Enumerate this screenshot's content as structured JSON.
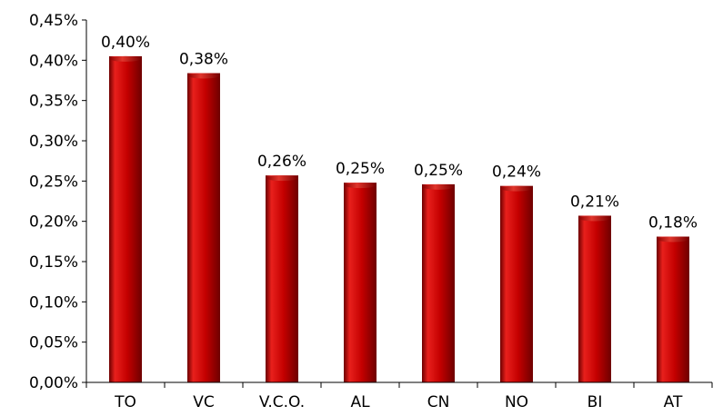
{
  "chart_data": {
    "type": "bar",
    "title": "",
    "xlabel": "",
    "ylabel": "",
    "categories": [
      "TO",
      "VC",
      "V.C.O.",
      "AL",
      "CN",
      "NO",
      "BI",
      "AT"
    ],
    "values": [
      0.405,
      0.384,
      0.257,
      0.248,
      0.246,
      0.244,
      0.207,
      0.181
    ],
    "data_labels": [
      "0,40%",
      "0,38%",
      "0,26%",
      "0,25%",
      "0,25%",
      "0,24%",
      "0,21%",
      "0,18%"
    ],
    "ylim": [
      0,
      0.45
    ],
    "y_ticks": [
      0,
      0.05,
      0.1,
      0.15,
      0.2,
      0.25,
      0.3,
      0.35,
      0.4,
      0.45
    ],
    "y_tick_labels": [
      "0,00%",
      "0,05%",
      "0,10%",
      "0,15%",
      "0,20%",
      "0,25%",
      "0,30%",
      "0,35%",
      "0,40%",
      "0,45%"
    ],
    "grid": false,
    "legend": "none",
    "colors": {
      "bar_light": "#e8201c",
      "bar_main": "#c40000",
      "bar_dark": "#6e0000",
      "axis": "#000000"
    }
  }
}
